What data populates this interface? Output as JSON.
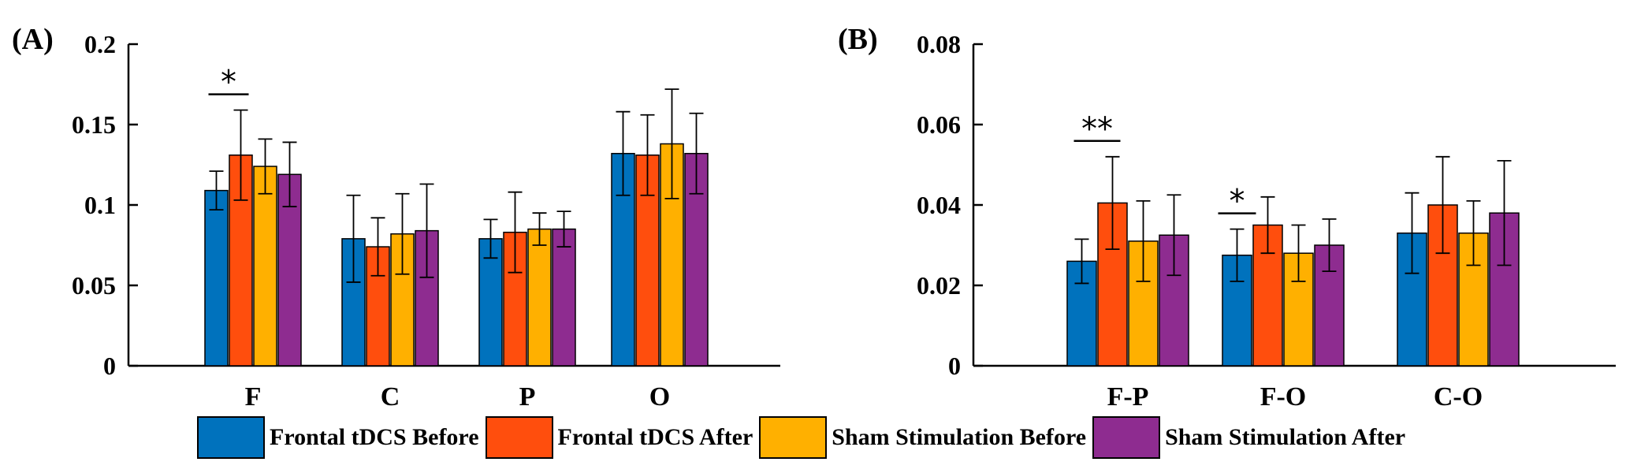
{
  "chart_data": [
    {
      "type": "bar",
      "panel_label": "(A)",
      "categories": [
        "F",
        "C",
        "P",
        "O"
      ],
      "ylim": [
        0,
        0.2
      ],
      "yticks": [
        "0",
        "0.05",
        "0.1",
        "0.15",
        "0.2"
      ],
      "ytick_values": [
        0,
        0.05,
        0.1,
        0.15,
        0.2
      ],
      "xlabel": "",
      "ylabel": "",
      "series": [
        {
          "name": "Frontal tDCS Before",
          "values": [
            0.109,
            0.079,
            0.079,
            0.132
          ],
          "errors": [
            0.012,
            0.027,
            0.012,
            0.026
          ]
        },
        {
          "name": "Frontal tDCS After",
          "values": [
            0.131,
            0.074,
            0.083,
            0.131
          ],
          "errors": [
            0.028,
            0.018,
            0.025,
            0.025
          ]
        },
        {
          "name": "Sham Stimulation Before",
          "values": [
            0.124,
            0.082,
            0.085,
            0.138
          ],
          "errors": [
            0.017,
            0.025,
            0.01,
            0.034
          ]
        },
        {
          "name": "Sham Stimulation After",
          "values": [
            0.119,
            0.084,
            0.085,
            0.132
          ],
          "errors": [
            0.02,
            0.029,
            0.011,
            0.025
          ]
        }
      ],
      "annotations": [
        {
          "text": "*",
          "category": "F",
          "from_series": 0,
          "to_series": 1
        }
      ]
    },
    {
      "type": "bar",
      "panel_label": "(B)",
      "categories": [
        "F-P",
        "F-O",
        "C-O"
      ],
      "ylim": [
        0,
        0.08
      ],
      "yticks": [
        "0",
        "0.02",
        "0.04",
        "0.06",
        "0.08"
      ],
      "ytick_values": [
        0,
        0.02,
        0.04,
        0.06,
        0.08
      ],
      "xlabel": "",
      "ylabel": "",
      "series": [
        {
          "name": "Frontal tDCS Before",
          "values": [
            0.026,
            0.0275,
            0.033
          ],
          "errors": [
            0.0055,
            0.0065,
            0.01
          ]
        },
        {
          "name": "Frontal tDCS After",
          "values": [
            0.0405,
            0.035,
            0.04
          ],
          "errors": [
            0.0115,
            0.007,
            0.012
          ]
        },
        {
          "name": "Sham Stimulation Before",
          "values": [
            0.031,
            0.028,
            0.033
          ],
          "errors": [
            0.01,
            0.007,
            0.008
          ]
        },
        {
          "name": "Sham Stimulation After",
          "values": [
            0.0325,
            0.03,
            0.038
          ],
          "errors": [
            0.01,
            0.0065,
            0.013
          ]
        }
      ],
      "annotations": [
        {
          "text": "**",
          "category": "F-P",
          "from_series": 0,
          "to_series": 1
        },
        {
          "text": "*",
          "category": "F-O",
          "from_series": 0,
          "to_series": 0
        }
      ]
    }
  ],
  "legend": {
    "items": [
      {
        "label": "Frontal tDCS Before",
        "color": "#0072BD"
      },
      {
        "label": "Frontal tDCS After",
        "color": "#FF4E0D"
      },
      {
        "label": "Sham Stimulation Before",
        "color": "#FFB000"
      },
      {
        "label": "Sham Stimulation After",
        "color": "#8E2C90"
      }
    ]
  }
}
